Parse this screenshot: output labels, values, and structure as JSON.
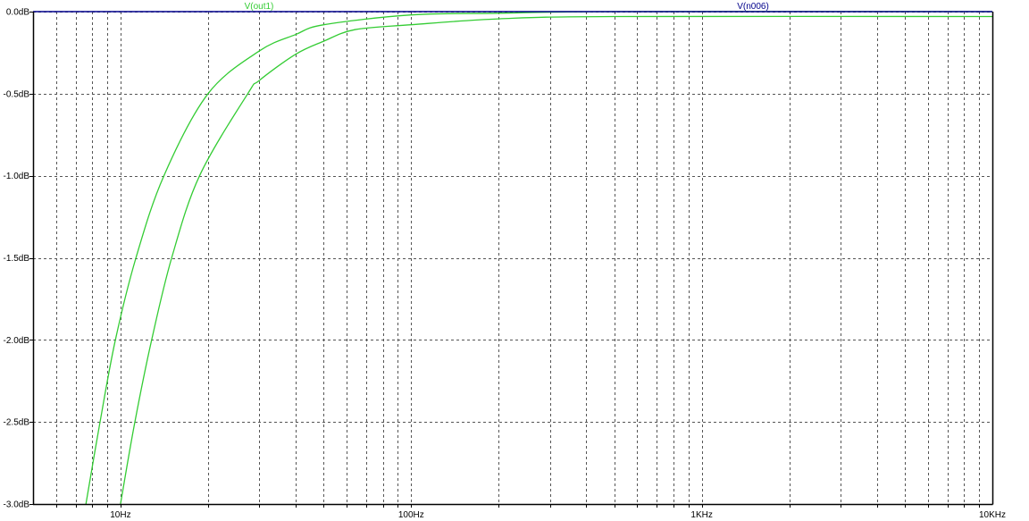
{
  "chart_data": {
    "type": "line",
    "title": "",
    "xlabel": "",
    "ylabel": "",
    "x_scale": "log",
    "xlim": [
      5,
      10000
    ],
    "ylim": [
      -3.0,
      0.0
    ],
    "grid": true,
    "x_ticks": [
      {
        "value": 10,
        "label": "10Hz"
      },
      {
        "value": 100,
        "label": "100Hz"
      },
      {
        "value": 1000,
        "label": "1KHz"
      },
      {
        "value": 10000,
        "label": "10KHz"
      }
    ],
    "y_ticks": [
      {
        "value": 0.0,
        "label": "0.0dB"
      },
      {
        "value": -0.5,
        "label": "-0.5dB"
      },
      {
        "value": -1.0,
        "label": "-1.0dB"
      },
      {
        "value": -1.5,
        "label": "-1.5dB"
      },
      {
        "value": -2.0,
        "label": "-2.0dB"
      },
      {
        "value": -2.5,
        "label": "-2.5dB"
      },
      {
        "value": -3.0,
        "label": "-3.0dB"
      }
    ],
    "legend": [
      {
        "label": "V(out1)",
        "color": "#33cc33"
      },
      {
        "label": "V(n006)",
        "color": "#00008b"
      }
    ],
    "series": [
      {
        "name": "V(out1)",
        "color": "#33cc33",
        "x": [
          7.6,
          8.5,
          9.6,
          11.3,
          14.1,
          20,
          30,
          40,
          50,
          100,
          200,
          500,
          10000
        ],
        "y": [
          -3.0,
          -2.5,
          -2.0,
          -1.5,
          -1.0,
          -0.5,
          -0.24,
          -0.14,
          -0.08,
          -0.02,
          -0.01,
          0.0,
          0.0
        ]
      },
      {
        "color": "#33cc33",
        "x": [
          10.0,
          11.2,
          12.8,
          15.0,
          18.7,
          27.4,
          30,
          40,
          50,
          64,
          100,
          200,
          500,
          10000
        ],
        "y": [
          -3.0,
          -2.5,
          -2.0,
          -1.5,
          -1.0,
          -0.5,
          -0.42,
          -0.26,
          -0.18,
          -0.11,
          -0.08,
          -0.044,
          -0.03,
          -0.03
        ]
      },
      {
        "name": "V(n006)",
        "color": "#00008b",
        "x": [
          5,
          10000
        ],
        "y": [
          0.0,
          0.0
        ]
      }
    ]
  }
}
